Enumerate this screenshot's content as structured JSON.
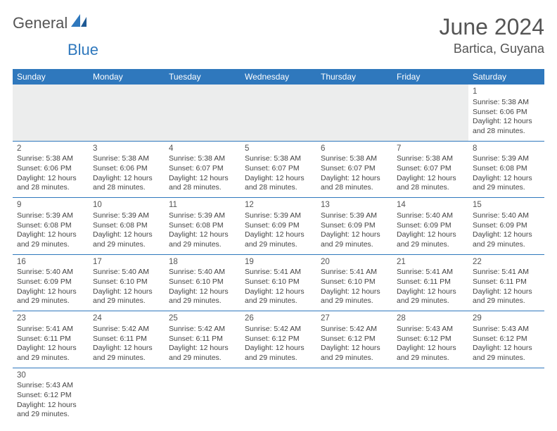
{
  "brand": {
    "text1": "General",
    "text2": "Blue",
    "color1": "#555555",
    "color2": "#2f78bd"
  },
  "title": "June 2024",
  "location": "Bartica, Guyana",
  "header_bg": "#2f78bd",
  "days_of_week": [
    "Sunday",
    "Monday",
    "Tuesday",
    "Wednesday",
    "Thursday",
    "Friday",
    "Saturday"
  ],
  "first_weekday_index": 6,
  "days": [
    {
      "n": 1,
      "sr": "5:38 AM",
      "ss": "6:06 PM",
      "dl": "12 hours and 28 minutes."
    },
    {
      "n": 2,
      "sr": "5:38 AM",
      "ss": "6:06 PM",
      "dl": "12 hours and 28 minutes."
    },
    {
      "n": 3,
      "sr": "5:38 AM",
      "ss": "6:06 PM",
      "dl": "12 hours and 28 minutes."
    },
    {
      "n": 4,
      "sr": "5:38 AM",
      "ss": "6:07 PM",
      "dl": "12 hours and 28 minutes."
    },
    {
      "n": 5,
      "sr": "5:38 AM",
      "ss": "6:07 PM",
      "dl": "12 hours and 28 minutes."
    },
    {
      "n": 6,
      "sr": "5:38 AM",
      "ss": "6:07 PM",
      "dl": "12 hours and 28 minutes."
    },
    {
      "n": 7,
      "sr": "5:38 AM",
      "ss": "6:07 PM",
      "dl": "12 hours and 28 minutes."
    },
    {
      "n": 8,
      "sr": "5:39 AM",
      "ss": "6:08 PM",
      "dl": "12 hours and 29 minutes."
    },
    {
      "n": 9,
      "sr": "5:39 AM",
      "ss": "6:08 PM",
      "dl": "12 hours and 29 minutes."
    },
    {
      "n": 10,
      "sr": "5:39 AM",
      "ss": "6:08 PM",
      "dl": "12 hours and 29 minutes."
    },
    {
      "n": 11,
      "sr": "5:39 AM",
      "ss": "6:08 PM",
      "dl": "12 hours and 29 minutes."
    },
    {
      "n": 12,
      "sr": "5:39 AM",
      "ss": "6:09 PM",
      "dl": "12 hours and 29 minutes."
    },
    {
      "n": 13,
      "sr": "5:39 AM",
      "ss": "6:09 PM",
      "dl": "12 hours and 29 minutes."
    },
    {
      "n": 14,
      "sr": "5:40 AM",
      "ss": "6:09 PM",
      "dl": "12 hours and 29 minutes."
    },
    {
      "n": 15,
      "sr": "5:40 AM",
      "ss": "6:09 PM",
      "dl": "12 hours and 29 minutes."
    },
    {
      "n": 16,
      "sr": "5:40 AM",
      "ss": "6:09 PM",
      "dl": "12 hours and 29 minutes."
    },
    {
      "n": 17,
      "sr": "5:40 AM",
      "ss": "6:10 PM",
      "dl": "12 hours and 29 minutes."
    },
    {
      "n": 18,
      "sr": "5:40 AM",
      "ss": "6:10 PM",
      "dl": "12 hours and 29 minutes."
    },
    {
      "n": 19,
      "sr": "5:41 AM",
      "ss": "6:10 PM",
      "dl": "12 hours and 29 minutes."
    },
    {
      "n": 20,
      "sr": "5:41 AM",
      "ss": "6:10 PM",
      "dl": "12 hours and 29 minutes."
    },
    {
      "n": 21,
      "sr": "5:41 AM",
      "ss": "6:11 PM",
      "dl": "12 hours and 29 minutes."
    },
    {
      "n": 22,
      "sr": "5:41 AM",
      "ss": "6:11 PM",
      "dl": "12 hours and 29 minutes."
    },
    {
      "n": 23,
      "sr": "5:41 AM",
      "ss": "6:11 PM",
      "dl": "12 hours and 29 minutes."
    },
    {
      "n": 24,
      "sr": "5:42 AM",
      "ss": "6:11 PM",
      "dl": "12 hours and 29 minutes."
    },
    {
      "n": 25,
      "sr": "5:42 AM",
      "ss": "6:11 PM",
      "dl": "12 hours and 29 minutes."
    },
    {
      "n": 26,
      "sr": "5:42 AM",
      "ss": "6:12 PM",
      "dl": "12 hours and 29 minutes."
    },
    {
      "n": 27,
      "sr": "5:42 AM",
      "ss": "6:12 PM",
      "dl": "12 hours and 29 minutes."
    },
    {
      "n": 28,
      "sr": "5:43 AM",
      "ss": "6:12 PM",
      "dl": "12 hours and 29 minutes."
    },
    {
      "n": 29,
      "sr": "5:43 AM",
      "ss": "6:12 PM",
      "dl": "12 hours and 29 minutes."
    },
    {
      "n": 30,
      "sr": "5:43 AM",
      "ss": "6:12 PM",
      "dl": "12 hours and 29 minutes."
    }
  ],
  "labels": {
    "sunrise": "Sunrise:",
    "sunset": "Sunset:",
    "daylight": "Daylight:"
  }
}
